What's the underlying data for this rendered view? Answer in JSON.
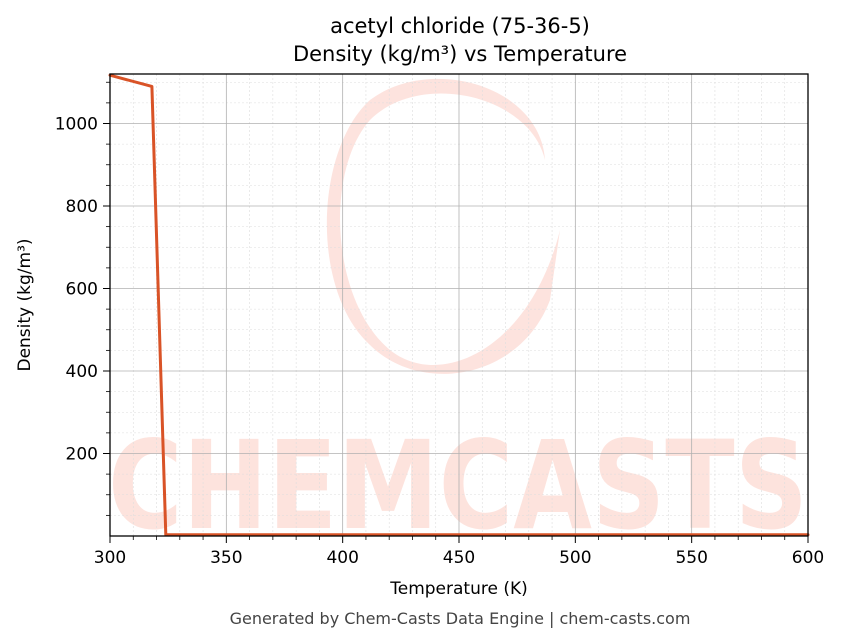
{
  "footer": "Generated by Chem-Casts Data Engine | chem-casts.com",
  "watermark": {
    "text": "CHEMCASTS",
    "color": "#fde0da"
  },
  "chart_data": {
    "type": "line",
    "title": "acetyl chloride (75-36-5)",
    "subtitle": "Density (kg/m³) vs Temperature",
    "xlabel": "Temperature (K)",
    "ylabel": "Density (kg/m³)",
    "xlim": [
      300,
      600
    ],
    "ylim": [
      0,
      1120
    ],
    "xticks": [
      300,
      350,
      400,
      450,
      500,
      550,
      600
    ],
    "yticks": [
      200,
      400,
      600,
      800,
      1000
    ],
    "grid": true,
    "series": [
      {
        "color": "#d95327",
        "x": [
          300,
          318,
          324,
          330,
          350,
          400,
          450,
          500,
          550,
          600
        ],
        "y": [
          1117,
          1090,
          3,
          3,
          3,
          3,
          3,
          3,
          3,
          3
        ]
      }
    ]
  }
}
